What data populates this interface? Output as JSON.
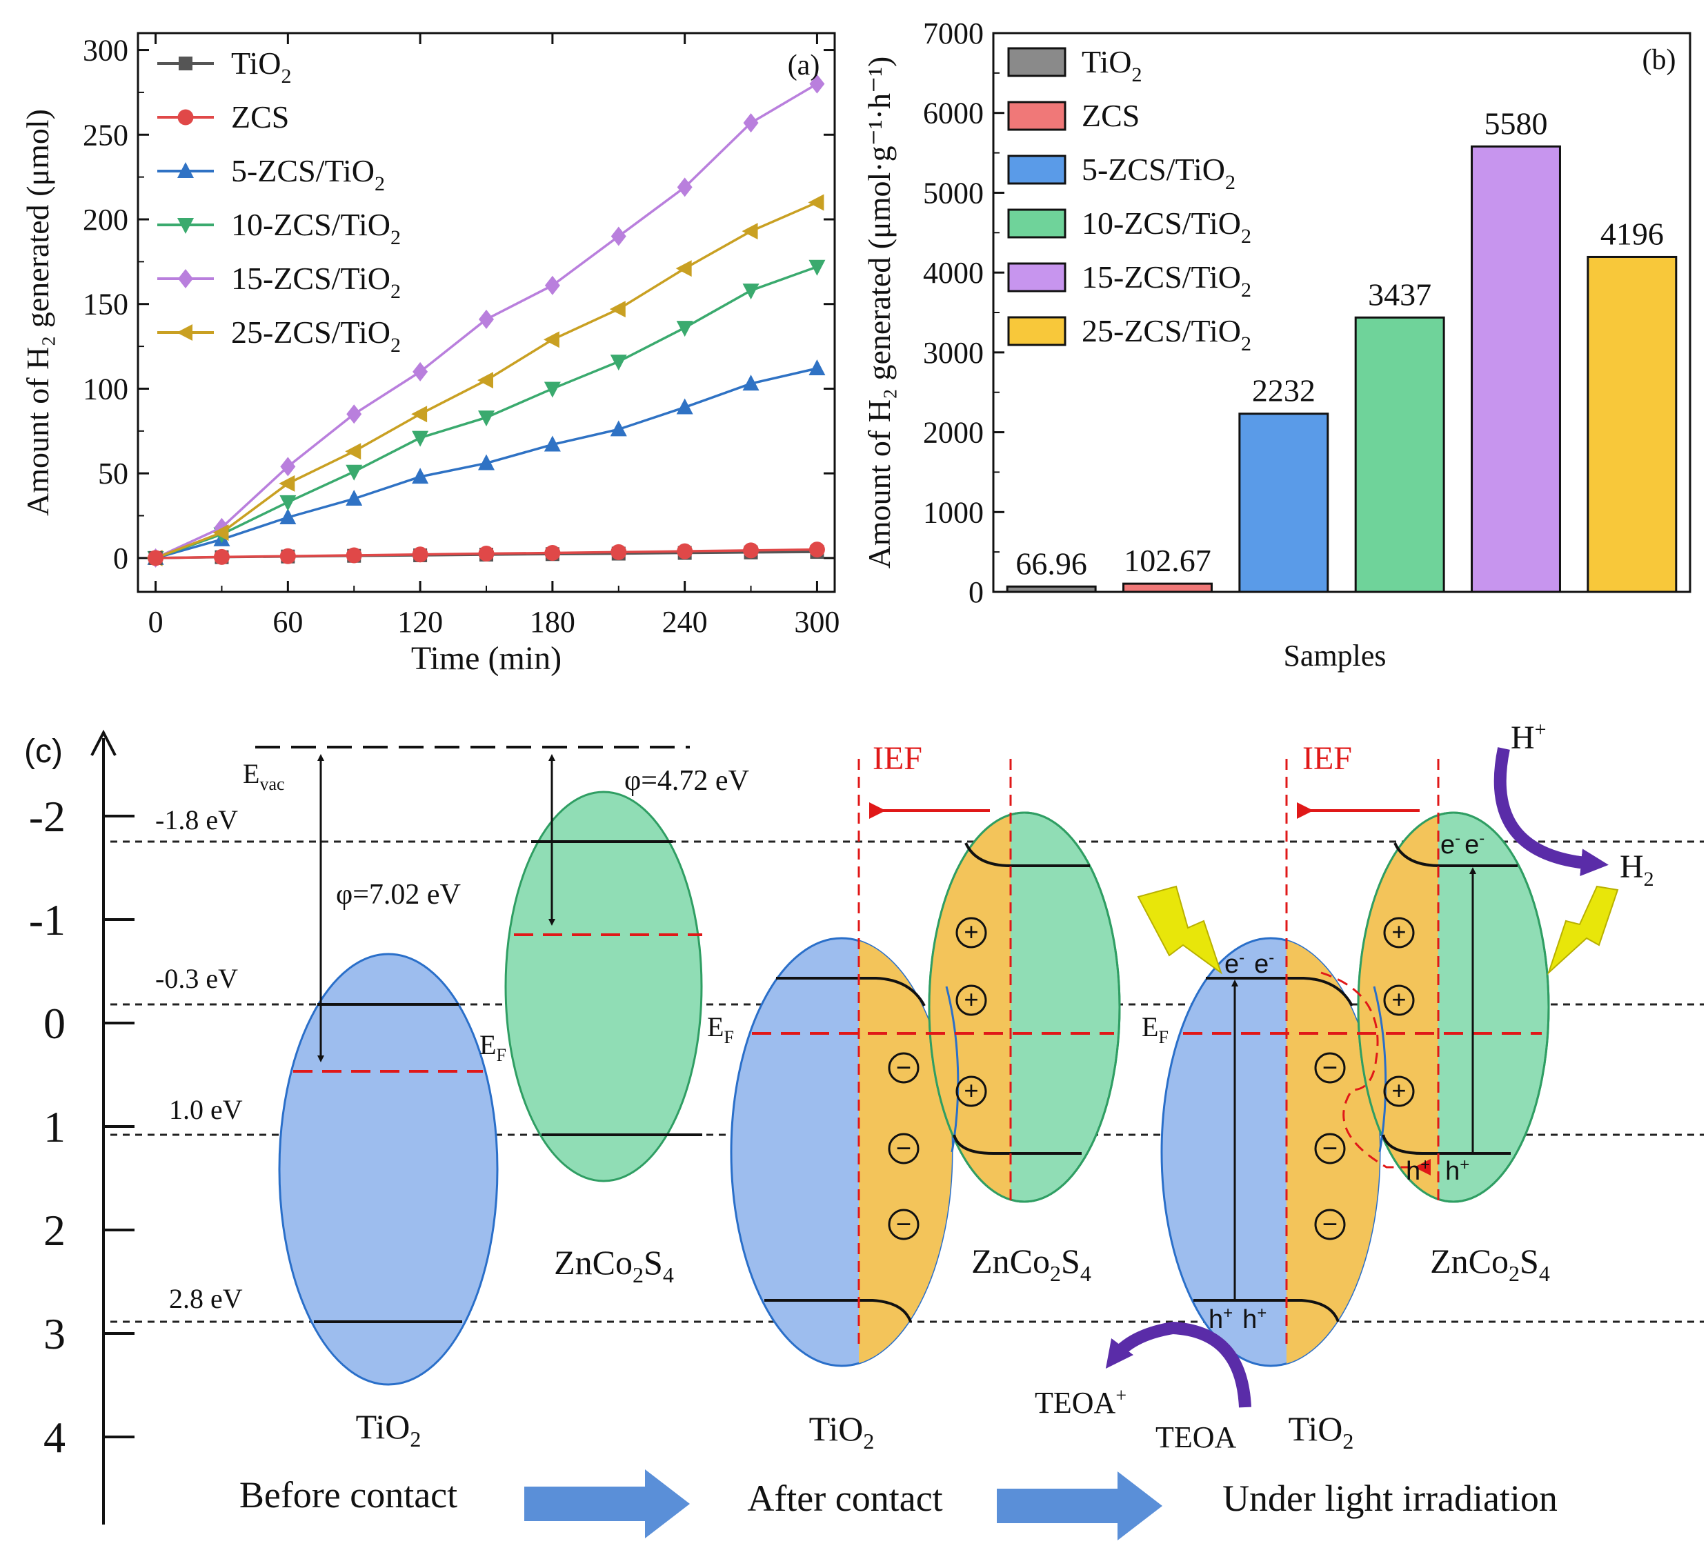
{
  "colors": {
    "tio2": "#555555",
    "zcs": "#e04848",
    "zcs5": "#2f72c4",
    "zcs10": "#3aaa6e",
    "zcs15": "#b97fdd",
    "zcs25": "#c9a022",
    "bar_tio2": "#8a8a8a",
    "bar_zcs": "#f07878",
    "bar_zcs5": "#5a9be8",
    "bar_zcs10": "#6fd39a",
    "bar_zcs15": "#c795ee",
    "bar_zcs25": "#f8c83a",
    "tio2_fill": "#9dbdee",
    "zcs_fill": "#90ddb5",
    "dep_fill": "#f3c45a",
    "red": "#e01818",
    "arrow_blue": "#5a8fd8",
    "purple": "#5a2ca8",
    "bolt": "#e8e60a"
  },
  "chart_data": [
    {
      "panel": "(a)",
      "type": "line",
      "xlabel": "Time (min)",
      "ylabel": "Amount of H₂ generated (μmol)",
      "xlim": [
        -8,
        308
      ],
      "ylim": [
        -20,
        310
      ],
      "x": [
        0,
        30,
        60,
        90,
        120,
        150,
        180,
        210,
        240,
        270,
        300
      ],
      "x_ticks": [
        "0",
        "60",
        "120",
        "180",
        "240",
        "300"
      ],
      "x_tick_values": [
        0,
        60,
        120,
        180,
        240,
        300
      ],
      "y_ticks": [
        "0",
        "50",
        "100",
        "150",
        "200",
        "250",
        "300"
      ],
      "y_tick_values": [
        0,
        50,
        100,
        150,
        200,
        250,
        300
      ],
      "series": [
        {
          "name_main": "TiO",
          "name_sub": "2",
          "color_key": "tio2",
          "marker": "square",
          "values": [
            0,
            0.5,
            0.9,
            1.3,
            1.6,
            2.0,
            2.3,
            2.6,
            3.0,
            3.3,
            3.6
          ]
        },
        {
          "name_main": "ZCS",
          "name_sub": "",
          "color_key": "zcs",
          "marker": "circle",
          "values": [
            0,
            0.6,
            1.1,
            1.6,
            2.1,
            2.6,
            3.0,
            3.5,
            4.0,
            4.5,
            5.0
          ]
        },
        {
          "name_main": "5-ZCS/TiO",
          "name_sub": "2",
          "color_key": "zcs5",
          "marker": "triangle-up",
          "values": [
            0,
            11,
            24,
            35,
            48,
            56,
            67,
            76,
            89,
            103,
            112
          ]
        },
        {
          "name_main": "10-ZCS/TiO",
          "name_sub": "2",
          "color_key": "zcs10",
          "marker": "triangle-down",
          "values": [
            0,
            14,
            33,
            51,
            71,
            83,
            100,
            116,
            136,
            158,
            172
          ]
        },
        {
          "name_main": "15-ZCS/TiO",
          "name_sub": "2",
          "color_key": "zcs15",
          "marker": "diamond",
          "values": [
            0,
            18,
            54,
            85,
            110,
            141,
            161,
            190,
            219,
            257,
            280
          ]
        },
        {
          "name_main": "25-ZCS/TiO",
          "name_sub": "2",
          "color_key": "zcs25",
          "marker": "triangle-left",
          "values": [
            0,
            15,
            44,
            63,
            85,
            105,
            129,
            147,
            171,
            193,
            210
          ]
        }
      ]
    },
    {
      "panel": "(b)",
      "type": "bar",
      "xlabel": "Samples",
      "ylabel": "Amount of H₂ generated (μmol·g⁻¹·h⁻¹)",
      "ylim": [
        0,
        7000
      ],
      "y_ticks": [
        "0",
        "1000",
        "2000",
        "3000",
        "4000",
        "5000",
        "6000",
        "7000"
      ],
      "y_tick_values": [
        0,
        1000,
        2000,
        3000,
        4000,
        5000,
        6000,
        7000
      ],
      "categories": [
        "TiO2",
        "ZCS",
        "5-ZCS/TiO2",
        "10-ZCS/TiO2",
        "15-ZCS/TiO2",
        "25-ZCS/TiO2"
      ],
      "legend": [
        {
          "main": "TiO",
          "sub": "2",
          "color_key": "bar_tio2"
        },
        {
          "main": "ZCS",
          "sub": "",
          "color_key": "bar_zcs"
        },
        {
          "main": "5-ZCS/TiO",
          "sub": "2",
          "color_key": "bar_zcs5"
        },
        {
          "main": "10-ZCS/TiO",
          "sub": "2",
          "color_key": "bar_zcs10"
        },
        {
          "main": "15-ZCS/TiO",
          "sub": "2",
          "color_key": "bar_zcs15"
        },
        {
          "main": "25-ZCS/TiO",
          "sub": "2",
          "color_key": "bar_zcs25"
        }
      ],
      "values": [
        66.96,
        102.67,
        2232,
        3437,
        5580,
        4196
      ],
      "value_labels": [
        "66.96",
        "102.67",
        "2232",
        "3437",
        "5580",
        "4196"
      ]
    }
  ],
  "panel_c": {
    "label": "(c)",
    "y_ticks": [
      "-2",
      "-1",
      "0",
      "1",
      "2",
      "3",
      "4"
    ],
    "levels": {
      "cb_zcs": "-1.8 eV",
      "cb_tio2": "-0.3 eV",
      "vb_zcs": "1.0 eV",
      "vb_tio2": "2.8 eV"
    },
    "evac": "E",
    "evac_sub": "vac",
    "ef": "E",
    "ef_sub": "F",
    "phi_tio2": "φ=7.02 eV",
    "phi_zcs": "φ=4.72 eV",
    "ief": "IEF",
    "tio2_main": "TiO",
    "tio2_sub": "2",
    "zcs_label": {
      "a": "ZnCo",
      "b": "2",
      "c": "S",
      "d": "4"
    },
    "stages": [
      "Before contact",
      "After contact",
      "Under light irradiation"
    ],
    "electron": "e",
    "electron_sup": "-",
    "hole": "h",
    "hole_sup": "+",
    "h_plus": "H",
    "h_plus_sup": "+",
    "h2_main": "H",
    "h2_sub": "2",
    "teoa": "TEOA",
    "teoa_plus": "TEOA",
    "teoa_plus_sup": "+",
    "plus_sign": "+",
    "minus_sign": "−"
  }
}
